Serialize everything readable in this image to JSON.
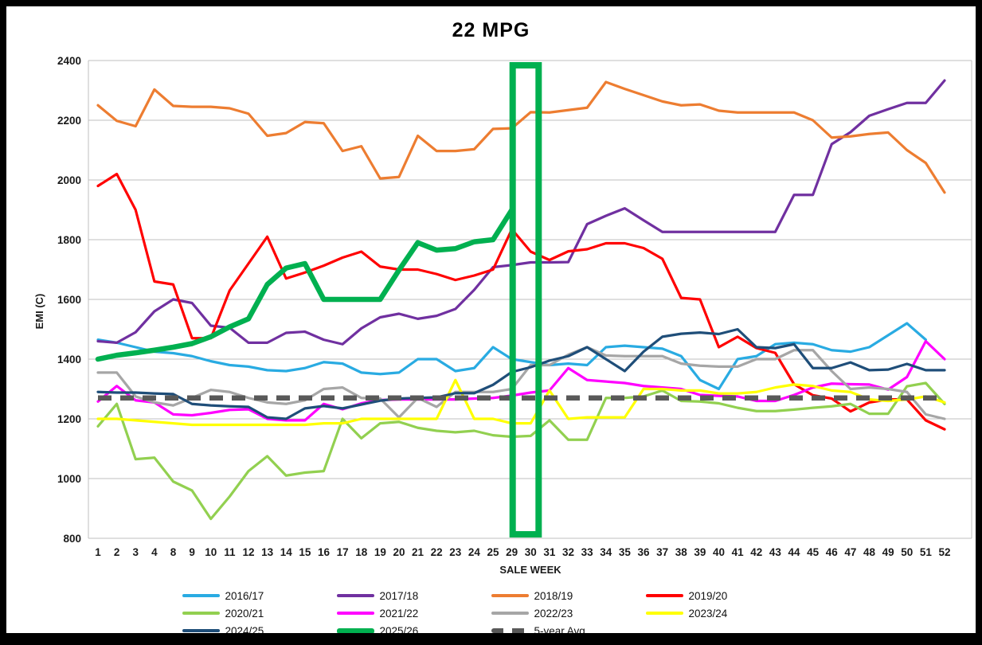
{
  "title": "22 MPG",
  "chart_data": {
    "type": "line",
    "title": "22 MPG",
    "xlabel": "SALE WEEK",
    "ylabel": "EMI (C)",
    "ylim": [
      800,
      2400
    ],
    "ytick_step": 200,
    "grid": true,
    "legend_position": "bottom",
    "highlight": {
      "type": "box",
      "weeks": [
        "29",
        "30"
      ],
      "color": "#00B050"
    },
    "x_categories": [
      "1",
      "2",
      "3",
      "4",
      "8",
      "9",
      "10",
      "11",
      "12",
      "13",
      "14",
      "15",
      "16",
      "17",
      "18",
      "19",
      "20",
      "21",
      "22",
      "23",
      "24",
      "25",
      "29",
      "30",
      "31",
      "32",
      "33",
      "34",
      "35",
      "36",
      "37",
      "38",
      "39",
      "40",
      "41",
      "42",
      "43",
      "44",
      "45",
      "46",
      "47",
      "48",
      "49",
      "50",
      "51",
      "52"
    ],
    "series": [
      {
        "name": "2016/17",
        "color": "#29ABE2",
        "width": 3.2,
        "dashed": false,
        "values": [
          1465,
          1455,
          1440,
          1425,
          1420,
          1410,
          1393,
          1380,
          1375,
          1363,
          1360,
          1370,
          1390,
          1385,
          1355,
          1350,
          1355,
          1400,
          1400,
          1360,
          1370,
          1440,
          1400,
          1390,
          1380,
          1385,
          1380,
          1440,
          1445,
          1440,
          1435,
          1410,
          1330,
          1300,
          1400,
          1410,
          1450,
          1455,
          1450,
          1430,
          1425,
          1440,
          1480,
          1520,
          1465,
          null
        ]
      },
      {
        "name": "2017/18",
        "color": "#7030A0",
        "width": 3.2,
        "dashed": false,
        "values": [
          1460,
          1455,
          1490,
          1560,
          1600,
          1588,
          1512,
          1505,
          1455,
          1455,
          1488,
          1492,
          1465,
          1450,
          1503,
          1540,
          1552,
          1535,
          1545,
          1568,
          1632,
          1708,
          1715,
          1724,
          1724,
          1725,
          1852,
          1880,
          1905,
          1865,
          1826,
          1826,
          1826,
          1826,
          1826,
          1826,
          1826,
          1950,
          1950,
          2120,
          2160,
          2215,
          2237,
          2258,
          2258,
          2333
        ]
      },
      {
        "name": "2018/19",
        "color": "#ED7D31",
        "width": 3.2,
        "dashed": false,
        "values": [
          2250,
          2198,
          2180,
          2303,
          2248,
          2245,
          2245,
          2240,
          2222,
          2148,
          2157,
          2194,
          2190,
          2097,
          2113,
          2005,
          2010,
          2148,
          2097,
          2097,
          2103,
          2171,
          2173,
          2227,
          2226,
          2234,
          2242,
          2328,
          2305,
          2284,
          2263,
          2250,
          2253,
          2232,
          2226,
          2226,
          2226,
          2226,
          2200,
          2142,
          2146,
          2154,
          2159,
          2100,
          2057,
          1958
        ]
      },
      {
        "name": "2019/20",
        "color": "#FF0000",
        "width": 3.2,
        "dashed": false,
        "values": [
          1980,
          2020,
          1900,
          1660,
          1650,
          1470,
          1470,
          1630,
          1720,
          1810,
          1670,
          1690,
          1713,
          1740,
          1760,
          1710,
          1700,
          1700,
          1685,
          1665,
          1680,
          1700,
          1835,
          1760,
          1732,
          1761,
          1768,
          1788,
          1788,
          1772,
          1736,
          1605,
          1600,
          1440,
          1475,
          1437,
          1421,
          1316,
          1279,
          1268,
          1225,
          1255,
          1265,
          1265,
          1195,
          1165
        ]
      },
      {
        "name": "2020/21",
        "color": "#92D050",
        "width": 3.2,
        "dashed": false,
        "values": [
          1175,
          1250,
          1065,
          1070,
          990,
          960,
          865,
          940,
          1025,
          1075,
          1010,
          1020,
          1025,
          1200,
          1135,
          1185,
          1190,
          1170,
          1160,
          1155,
          1160,
          1145,
          1140,
          1143,
          1195,
          1130,
          1130,
          1270,
          1270,
          1275,
          1295,
          1260,
          1258,
          1252,
          1237,
          1226,
          1226,
          1231,
          1237,
          1242,
          1250,
          1217,
          1217,
          1309,
          1320,
          1250
        ]
      },
      {
        "name": "2021/22",
        "color": "#FF00FF",
        "width": 3.2,
        "dashed": false,
        "values": [
          1258,
          1310,
          1262,
          1255,
          1215,
          1212,
          1220,
          1230,
          1232,
          1200,
          1195,
          1195,
          1250,
          1232,
          1252,
          1263,
          1265,
          1265,
          1265,
          1265,
          1268,
          1270,
          1278,
          1288,
          1295,
          1370,
          1330,
          1325,
          1320,
          1310,
          1305,
          1300,
          1280,
          1277,
          1275,
          1260,
          1260,
          1280,
          1305,
          1318,
          1316,
          1315,
          1298,
          1340,
          1460,
          1400
        ]
      },
      {
        "name": "2022/23",
        "color": "#A6A6A6",
        "width": 3.2,
        "dashed": false,
        "values": [
          1355,
          1355,
          1275,
          1255,
          1245,
          1270,
          1297,
          1290,
          1270,
          1255,
          1250,
          1262,
          1300,
          1305,
          1270,
          1268,
          1205,
          1270,
          1240,
          1290,
          1290,
          1290,
          1300,
          1380,
          1380,
          1415,
          1440,
          1412,
          1410,
          1410,
          1410,
          1385,
          1378,
          1375,
          1375,
          1400,
          1400,
          1430,
          1430,
          1360,
          1300,
          1305,
          1300,
          1290,
          1215,
          1200
        ]
      },
      {
        "name": "2023/24",
        "color": "#FFFF00",
        "width": 3.2,
        "dashed": false,
        "values": [
          1200,
          1200,
          1195,
          1190,
          1185,
          1180,
          1180,
          1180,
          1180,
          1180,
          1180,
          1180,
          1185,
          1185,
          1200,
          1200,
          1200,
          1200,
          1200,
          1330,
          1200,
          1200,
          1185,
          1185,
          1295,
          1200,
          1205,
          1205,
          1205,
          1300,
          1300,
          1295,
          1295,
          1285,
          1285,
          1290,
          1305,
          1315,
          1310,
          1295,
          1290,
          1265,
          1260,
          1265,
          1275,
          1255
        ]
      },
      {
        "name": "2024/25",
        "color": "#1F4E79",
        "width": 3.2,
        "dashed": false,
        "values": [
          1290,
          1288,
          1288,
          1285,
          1283,
          1250,
          1245,
          1242,
          1240,
          1205,
          1200,
          1235,
          1243,
          1235,
          1248,
          1261,
          1268,
          1270,
          1272,
          1286,
          1286,
          1314,
          1357,
          1373,
          1395,
          1410,
          1440,
          1400,
          1360,
          1425,
          1475,
          1485,
          1489,
          1484,
          1500,
          1440,
          1437,
          1450,
          1370,
          1370,
          1389,
          1363,
          1365,
          1384,
          1363,
          1363
        ]
      },
      {
        "name": "2025/26",
        "color": "#00B050",
        "width": 6.5,
        "dashed": false,
        "values": [
          1400,
          1413,
          1421,
          1430,
          1440,
          1452,
          1475,
          1508,
          1535,
          1650,
          1705,
          1720,
          1600,
          1600,
          1600,
          1600,
          1698,
          1790,
          1765,
          1770,
          1793,
          1800,
          1900,
          null,
          null,
          null,
          null,
          null,
          null,
          null,
          null,
          null,
          null,
          null,
          null,
          null,
          null,
          null,
          null,
          null,
          null,
          null,
          null,
          null,
          null,
          null
        ]
      },
      {
        "name": "5-year Avg",
        "color": "#595959",
        "width": 6.5,
        "dashed": true,
        "values": [
          1270,
          1270,
          1270,
          1270,
          1270,
          1270,
          1270,
          1270,
          1270,
          1270,
          1270,
          1270,
          1270,
          1270,
          1270,
          1270,
          1270,
          1270,
          1270,
          1270,
          1270,
          1270,
          1270,
          1270,
          1270,
          1270,
          1270,
          1270,
          1270,
          1270,
          1270,
          1270,
          1270,
          1270,
          1270,
          1270,
          1270,
          1270,
          1270,
          1270,
          1270,
          1270,
          1270,
          1270,
          1270,
          1270
        ]
      }
    ]
  }
}
